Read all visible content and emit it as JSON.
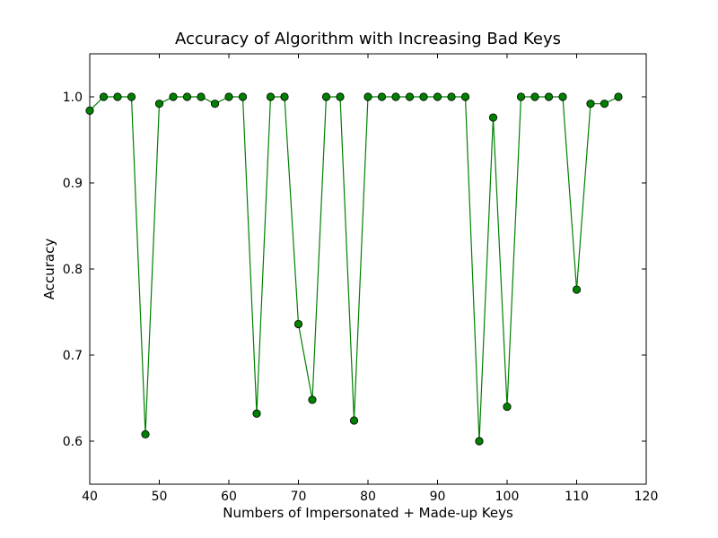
{
  "chart_data": {
    "type": "line",
    "title": "Accuracy of Algorithm with Increasing Bad Keys",
    "xlabel": "Numbers of Impersonated + Made-up Keys",
    "ylabel": "Accuracy",
    "xlim": [
      40,
      120
    ],
    "ylim": [
      0.55,
      1.05
    ],
    "xticks": [
      "40",
      "50",
      "60",
      "70",
      "80",
      "90",
      "100",
      "110",
      "120"
    ],
    "yticks": [
      "0.6",
      "0.7",
      "0.8",
      "0.9",
      "1.0"
    ],
    "grid": false,
    "legend": "none",
    "series": [
      {
        "color": "#008000",
        "marker_fill": "#008000",
        "marker_edge": "#000000",
        "x": [
          40,
          42,
          44,
          46,
          48,
          50,
          52,
          54,
          56,
          58,
          60,
          62,
          64,
          66,
          68,
          70,
          72,
          74,
          76,
          78,
          80,
          82,
          84,
          86,
          88,
          90,
          92,
          94,
          96,
          98,
          100,
          102,
          104,
          106,
          108,
          110,
          112,
          114,
          116
        ],
        "y": [
          0.984,
          1.0,
          1.0,
          1.0,
          0.608,
          0.992,
          1.0,
          1.0,
          1.0,
          0.992,
          1.0,
          1.0,
          0.632,
          1.0,
          1.0,
          0.736,
          0.648,
          1.0,
          1.0,
          0.624,
          1.0,
          1.0,
          1.0,
          1.0,
          1.0,
          1.0,
          1.0,
          1.0,
          0.6,
          0.976,
          0.64,
          1.0,
          1.0,
          1.0,
          1.0,
          0.776,
          0.992,
          0.992,
          1.0
        ]
      }
    ]
  }
}
